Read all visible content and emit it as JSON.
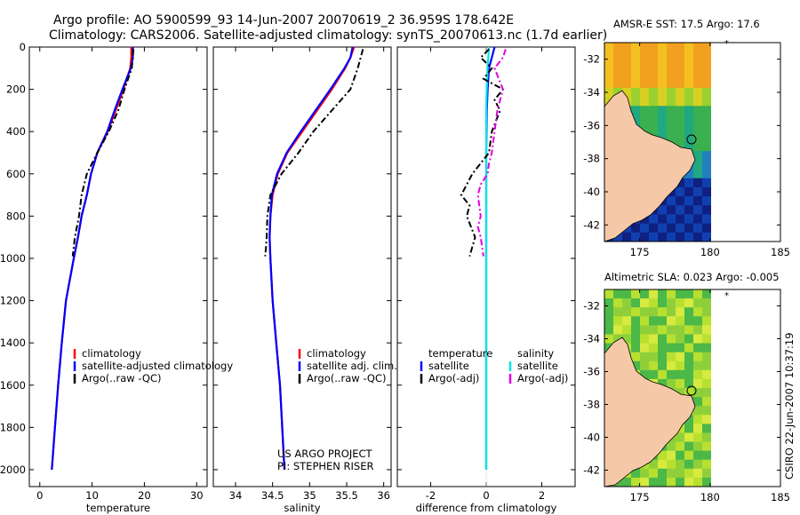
{
  "header": {
    "line1": "Argo profile: AO 5900599_93 14-Jun-2007 20070619_2 36.959S 178.642E",
    "line2": "Climatology: CARS2006. Satellite-adjusted climatology: synTS_20070613.nc (1.7d earlier)"
  },
  "side_label": "CSIRO 22-Jun-2007 10:37:19",
  "colors": {
    "climatology": "#ff0000",
    "satellite": "#0000ff",
    "argo": "#000000",
    "satellite_cyan": "#00e5e5",
    "argo_magenta": "#e000e0",
    "land": "#f5c8a8",
    "field_green": "#2db02d"
  },
  "chart_data": [
    {
      "type": "line",
      "id": "temperature",
      "title": "",
      "xlabel": "temperature",
      "ylabel": "",
      "xlim": [
        -2,
        32
      ],
      "ylim": [
        2080,
        0
      ],
      "xticks": [
        0,
        10,
        20,
        30
      ],
      "yticks": [
        0,
        200,
        400,
        600,
        800,
        1000,
        1200,
        1400,
        1600,
        1800,
        2000
      ],
      "legend": [
        "climatology",
        "satellite-adjusted climatology",
        "Argo(..raw -QC)"
      ],
      "series": [
        {
          "name": "climatology",
          "style": "solid",
          "x": [
            17.5,
            17.5,
            17.3,
            16.0,
            14.5,
            13.0,
            11.0,
            9.8,
            9.0,
            8.0,
            7.3,
            6.5,
            5.0,
            4.2,
            3.5,
            2.9,
            2.3
          ],
          "y": [
            0,
            50,
            100,
            200,
            300,
            400,
            500,
            600,
            700,
            800,
            900,
            1000,
            1200,
            1400,
            1600,
            1800,
            2000
          ]
        },
        {
          "name": "satellite-adjusted climatology",
          "style": "solid",
          "x": [
            17.8,
            17.8,
            17.4,
            15.8,
            14.3,
            12.9,
            11.0,
            9.8,
            9.0,
            8.0,
            7.3,
            6.5,
            5.0,
            4.2,
            3.5,
            2.9,
            2.3
          ],
          "y": [
            0,
            50,
            100,
            200,
            300,
            400,
            500,
            600,
            700,
            800,
            900,
            1000,
            1200,
            1400,
            1600,
            1800,
            2000
          ]
        },
        {
          "name": "Argo(..raw -QC)",
          "style": "dashdot",
          "x": [
            17.9,
            17.6,
            16.2,
            15.0,
            13.2,
            11.0,
            9.0,
            8.0,
            7.5,
            6.7,
            6.3
          ],
          "y": [
            10,
            100,
            200,
            300,
            400,
            500,
            600,
            700,
            800,
            900,
            990
          ]
        }
      ]
    },
    {
      "type": "line",
      "id": "salinity",
      "title": "",
      "xlabel": "salinity",
      "ylabel": "",
      "xlim": [
        33.7,
        36.1
      ],
      "ylim": [
        2080,
        0
      ],
      "xticks": [
        34,
        34.5,
        35,
        35.5,
        36
      ],
      "legend": [
        "climatology",
        "satellite adj. clim.",
        "Argo(..raw -QC)"
      ],
      "annotation": [
        "US ARGO PROJECT",
        "PI: STEPHEN RISER"
      ],
      "series": [
        {
          "name": "climatology",
          "style": "solid",
          "x": [
            35.6,
            35.55,
            35.48,
            35.3,
            35.1,
            34.9,
            34.7,
            34.57,
            34.5,
            34.47,
            34.46,
            34.47,
            34.5,
            34.55,
            34.6,
            34.63,
            34.66
          ],
          "y": [
            0,
            50,
            100,
            200,
            300,
            400,
            500,
            600,
            700,
            800,
            900,
            1000,
            1200,
            1400,
            1600,
            1800,
            2000
          ]
        },
        {
          "name": "satellite adj. clim.",
          "style": "solid",
          "x": [
            35.58,
            35.55,
            35.47,
            35.28,
            35.08,
            34.88,
            34.69,
            34.56,
            34.49,
            34.47,
            34.46,
            34.47,
            34.5,
            34.55,
            34.6,
            34.63,
            34.66
          ],
          "y": [
            0,
            50,
            100,
            200,
            300,
            400,
            500,
            600,
            700,
            800,
            900,
            1000,
            1200,
            1400,
            1600,
            1800,
            2000
          ]
        },
        {
          "name": "Argo(..raw -QC)",
          "style": "dashdot",
          "x": [
            35.72,
            35.65,
            35.55,
            35.3,
            35.05,
            34.85,
            34.62,
            34.47,
            34.43,
            34.42,
            34.41,
            34.4
          ],
          "y": [
            10,
            100,
            200,
            300,
            400,
            500,
            600,
            700,
            800,
            900,
            950,
            990
          ]
        }
      ]
    },
    {
      "type": "line",
      "id": "difference",
      "title": "",
      "xlabel": "difference from climatology",
      "ylabel": "",
      "xlim": [
        -3.2,
        3.2
      ],
      "ylim": [
        2080,
        0
      ],
      "xticks": [
        -2,
        0,
        2
      ],
      "legend_left_title": "temperature",
      "legend_right_title": "salinity",
      "legend_left": [
        "satellite",
        "Argo(-adj)"
      ],
      "legend_right": [
        "satellite",
        "Argo(-adj)"
      ],
      "series": [
        {
          "name": "temperature satellite",
          "style": "solid",
          "x": [
            0.3,
            0.2,
            0.1,
            0.05,
            0.02,
            0,
            0,
            0,
            0,
            0,
            0
          ],
          "y": [
            0,
            50,
            100,
            200,
            300,
            500,
            800,
            1000,
            1400,
            1800,
            2000
          ]
        },
        {
          "name": "salinity satellite",
          "style": "solid",
          "x": [
            0.1,
            0.05,
            0.02,
            0,
            0,
            0,
            0,
            0,
            0,
            0
          ],
          "y": [
            0,
            100,
            200,
            300,
            500,
            800,
            1000,
            1400,
            1800,
            2000
          ]
        },
        {
          "name": "temperature Argo(-adj)",
          "style": "dashdot",
          "x": [
            0.1,
            -0.2,
            0.2,
            -0.1,
            0.6,
            0.3,
            0.5,
            0.2,
            0.1,
            -0.2,
            -0.5,
            -0.9,
            -0.6,
            -0.7,
            -0.4,
            -0.6
          ],
          "y": [
            10,
            50,
            100,
            150,
            200,
            250,
            300,
            400,
            500,
            550,
            600,
            700,
            750,
            800,
            900,
            990
          ]
        },
        {
          "name": "salinity Argo(-adj)",
          "style": "dashdot",
          "x": [
            0.7,
            0.6,
            0.3,
            0.6,
            0.4,
            0.3,
            0.2,
            0.1,
            0.05,
            -0.2,
            -0.3,
            -0.2,
            -0.3,
            -0.2,
            -0.1
          ],
          "y": [
            10,
            50,
            100,
            200,
            300,
            400,
            500,
            550,
            600,
            650,
            700,
            800,
            850,
            900,
            990
          ]
        }
      ]
    },
    {
      "type": "heatmap",
      "id": "sst_map",
      "title": "AMSR-E SST: 17.5  Argo: 17.6",
      "xlim": [
        172.5,
        185
      ],
      "ylim": [
        -43,
        -31
      ],
      "xticks": [
        175,
        180,
        185
      ],
      "yticks": [
        -32,
        -34,
        -36,
        -38,
        -40,
        -42
      ],
      "float_position": [
        178.64,
        -36.96
      ]
    },
    {
      "type": "heatmap",
      "id": "sla_map",
      "title": "Altimetric SLA: 0.023  Argo: -0.005",
      "xlim": [
        172.5,
        185
      ],
      "ylim": [
        -43,
        -31
      ],
      "xticks": [
        175,
        180,
        185
      ],
      "yticks": [
        -32,
        -34,
        -36,
        -38,
        -40,
        -42
      ],
      "float_position": [
        178.64,
        -36.96
      ]
    }
  ]
}
